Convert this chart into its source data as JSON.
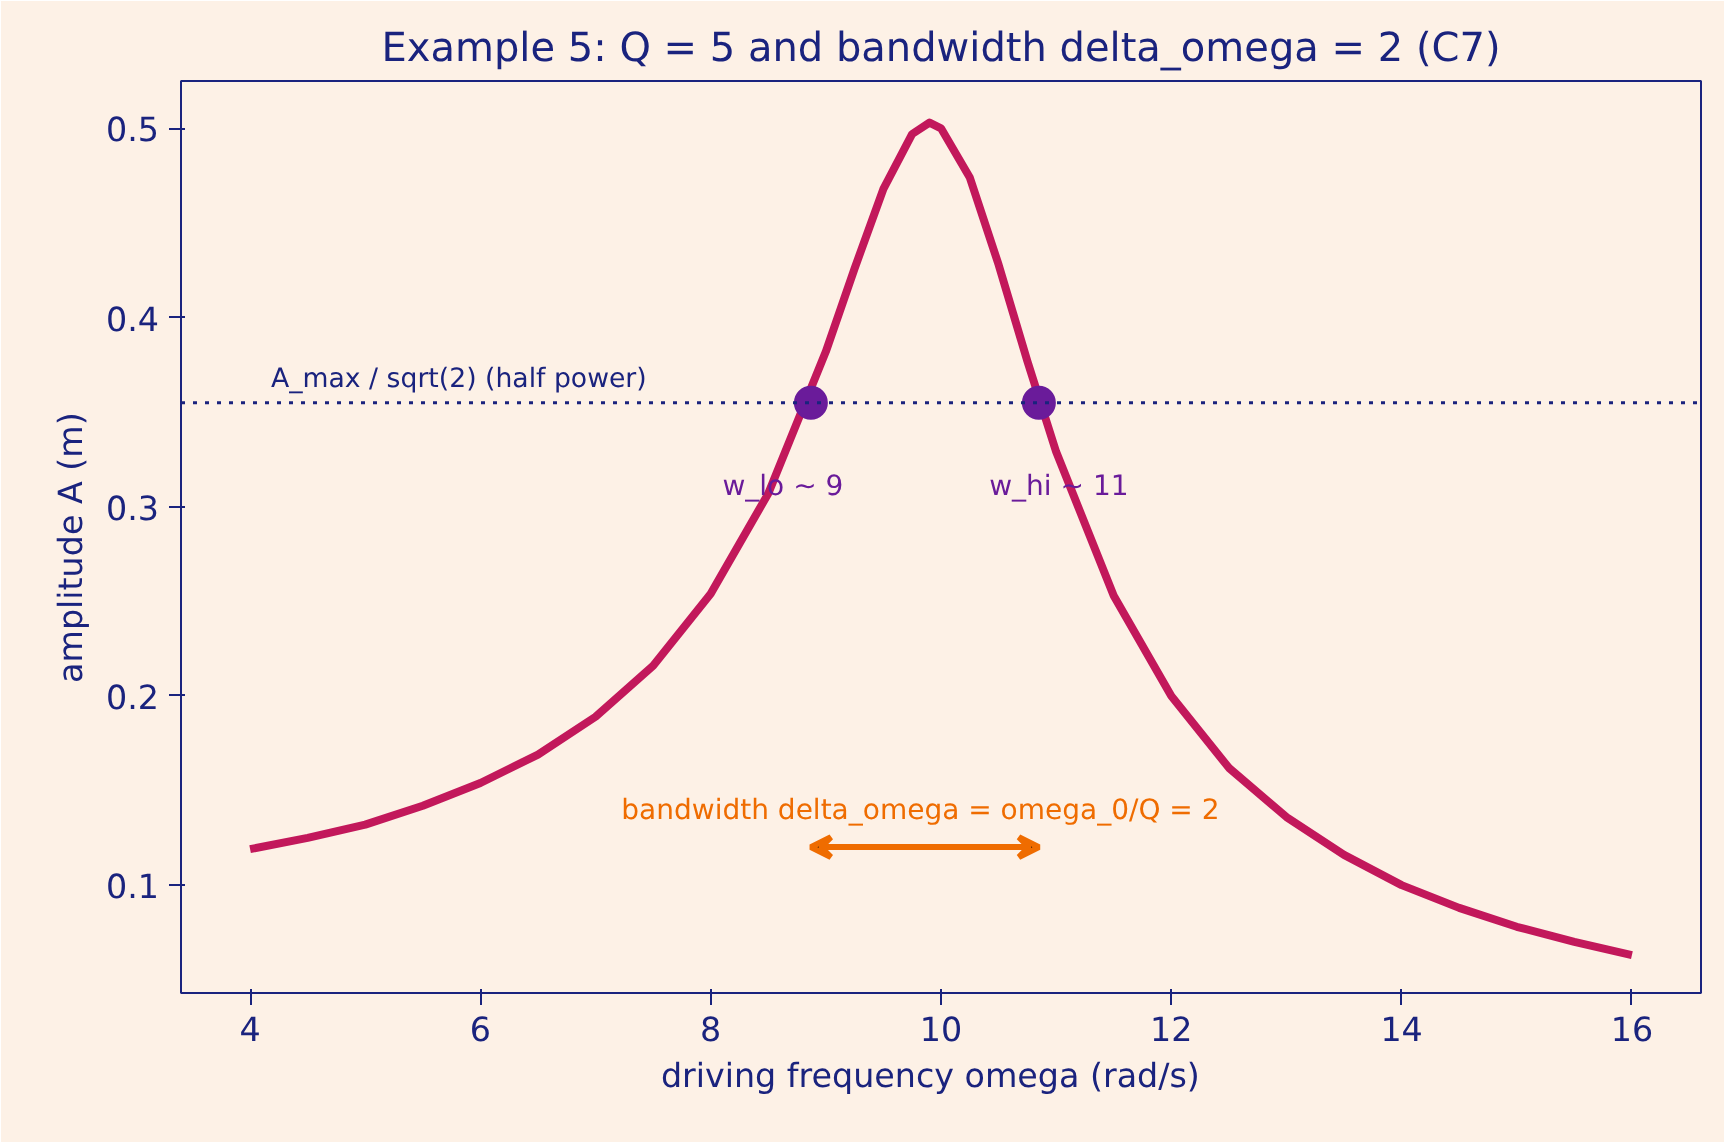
{
  "chart_data": {
    "type": "line",
    "title": "Example 5: Q = 5 and bandwidth delta_omega = 2 (C7)",
    "xlabel": "driving frequency  omega  (rad/s)",
    "ylabel": "amplitude  A  (m)",
    "xlim": [
      3.4,
      16.6
    ],
    "xticks": [
      4,
      6,
      8,
      10,
      12,
      14,
      16
    ],
    "ylim": [
      0.043,
      0.525
    ],
    "yticks": [
      0.1,
      0.2,
      0.3,
      0.4,
      0.5
    ],
    "series": [
      {
        "color": "#c2185b",
        "x": [
          4,
          4.5,
          5,
          5.5,
          6,
          6.5,
          7,
          7.5,
          8,
          8.5,
          9,
          9.25,
          9.5,
          9.75,
          9.9,
          10,
          10.25,
          10.5,
          10.75,
          11,
          11.5,
          12,
          12.5,
          13,
          13.5,
          14,
          14.5,
          15,
          15.5,
          16
        ],
        "values": [
          0.119,
          0.125,
          0.132,
          0.142,
          0.154,
          0.169,
          0.189,
          0.216,
          0.254,
          0.307,
          0.382,
          0.426,
          0.468,
          0.497,
          0.503,
          0.5,
          0.474,
          0.428,
          0.377,
          0.329,
          0.253,
          0.2,
          0.162,
          0.136,
          0.116,
          0.1,
          0.088,
          0.078,
          0.07,
          0.063
        ]
      },
      {
        "type": "scatter",
        "color": "#6a1b9a",
        "x": [
          8.87,
          10.85
        ],
        "values": [
          0.355,
          0.355
        ]
      }
    ],
    "ref_lines": [
      {
        "axis": "y",
        "value": 0.355,
        "label": "A_max / sqrt(2)  (half power)",
        "color": "#1a237e",
        "line_style": "dotted"
      }
    ],
    "annotations": [
      {
        "text": "w_lo ~ 9",
        "x": 8.87,
        "y": 0.355
      },
      {
        "text": "w_hi ~ 11",
        "x": 10.85,
        "y": 0.355
      },
      "bandwidth  delta_omega = omega_0/Q = 2"
    ],
    "grid": false
  }
}
